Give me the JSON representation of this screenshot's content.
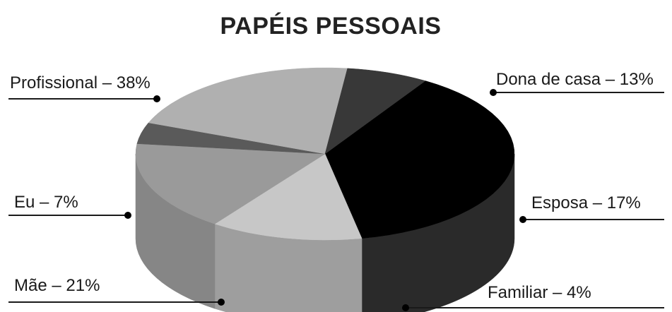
{
  "chart_data": {
    "type": "pie",
    "title": "PAPÉIS PESSOAIS",
    "slices": [
      {
        "label": "Profissional – 38%",
        "value": 38,
        "color": "#000000",
        "side_color": "#2a2a2a"
      },
      {
        "label": "Dona de casa – 13%",
        "value": 13,
        "color": "#c7c7c7",
        "side_color": "#9e9e9e"
      },
      {
        "label": "Esposa – 17%",
        "value": 17,
        "color": "#9a9a9a",
        "side_color": "#868686"
      },
      {
        "label": "Familiar – 4%",
        "value": 4,
        "color": "#5a5a5a",
        "side_color": "#454545"
      },
      {
        "label": "Mãe – 21%",
        "value": 21,
        "color": "#b0b0b0",
        "side_color": "#a0a0a0"
      },
      {
        "label": "Eu – 7%",
        "value": 7,
        "color": "#383838",
        "side_color": "#2e2e2e"
      }
    ],
    "legend": "none"
  }
}
